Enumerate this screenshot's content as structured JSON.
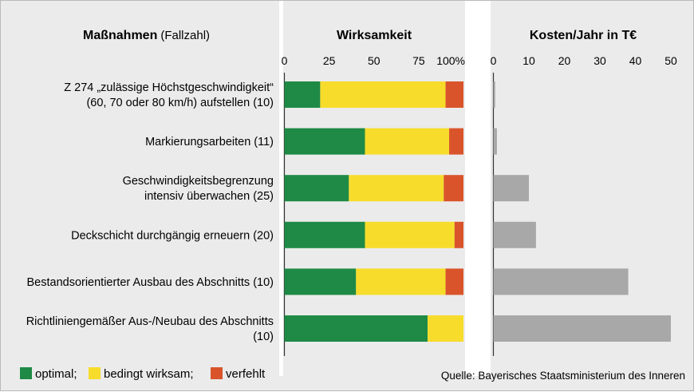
{
  "header": {
    "measures_label": "Maßnahmen",
    "measures_sub": "(Fallzahl)",
    "effect_label": "Wirksamkeit",
    "cost_label": "Kosten/Jahr in T€"
  },
  "chart_data": [
    {
      "type": "bar",
      "stacked": true,
      "orientation": "horizontal",
      "title": "Wirksamkeit",
      "categories": [
        [
          "Z 274 „zulässige Höchstgeschwindigkeit“",
          "(60, 70 oder 80 km/h) aufstellen (10)"
        ],
        [
          "Markierungsarbeiten (11)"
        ],
        [
          "Geschwindigkeitsbegrenzung",
          "intensiv überwachen (25)"
        ],
        [
          "Deckschicht durchgängig erneuern (20)"
        ],
        [
          "Bestandsorientierter Ausbau des Abschnitts (10)"
        ],
        [
          "Richtliniengemäßer Aus-/Neubau des Abschnitts",
          "(10)"
        ]
      ],
      "series": [
        {
          "name": "optimal",
          "color": "#1e8a46",
          "values": [
            20,
            45,
            36,
            45,
            40,
            80
          ]
        },
        {
          "name": "bedingt wirksam",
          "color": "#f7dc2b",
          "values": [
            70,
            47,
            53,
            50,
            50,
            20
          ]
        },
        {
          "name": "verfehlt",
          "color": "#d9542b",
          "values": [
            10,
            8,
            11,
            5,
            10,
            0
          ]
        }
      ],
      "xlim": [
        0,
        100
      ],
      "xticks": [
        "0",
        "25",
        "50",
        "75",
        "100%"
      ],
      "xtick_values": [
        0,
        25,
        50,
        75,
        100
      ]
    },
    {
      "type": "bar",
      "orientation": "horizontal",
      "title": "Kosten/Jahr in T€",
      "categories": [
        "Z 274 „zulässige Höchstgeschwindigkeit“ (60, 70 oder 80 km/h) aufstellen (10)",
        "Markierungsarbeiten (11)",
        "Geschwindigkeitsbegrenzung intensiv überwachen (25)",
        "Deckschicht durchgängig erneuern (20)",
        "Bestandsorientierter Ausbau des Abschnitts (10)",
        "Richtliniengemäßer Aus-/Neubau des Abschnitts (10)"
      ],
      "values": [
        0.5,
        1,
        10,
        12,
        38,
        50
      ],
      "color": "#a8a8a8",
      "xlim": [
        0,
        50
      ],
      "xticks": [
        "0",
        "10",
        "20",
        "30",
        "40",
        "50"
      ],
      "xtick_values": [
        0,
        10,
        20,
        30,
        40,
        50
      ]
    }
  ],
  "legend": [
    {
      "label": "optimal;",
      "color": "#1e8a46"
    },
    {
      "label": "bedingt wirksam;",
      "color": "#f7dc2b"
    },
    {
      "label": "verfehlt",
      "color": "#d9542b"
    }
  ],
  "source": "Quelle: Bayerisches Staatsministerium des Inneren",
  "colors": {
    "background": "#ebebeb",
    "separator": "#ffffff",
    "axis": "#333333"
  }
}
